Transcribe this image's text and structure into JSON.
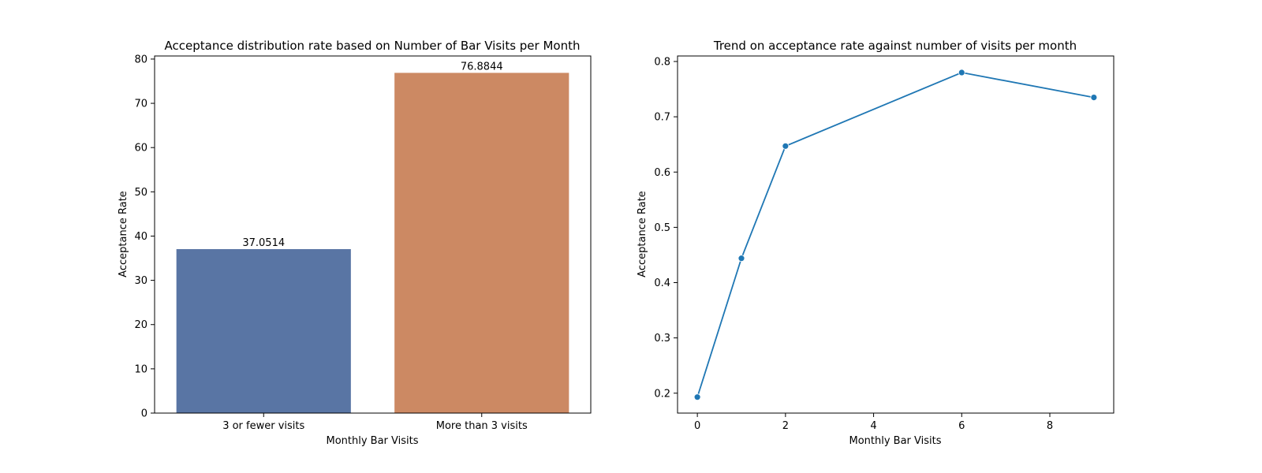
{
  "chart_data": [
    {
      "type": "bar",
      "title": "Acceptance distribution rate based on Number of Bar Visits per Month",
      "xlabel": "Monthly Bar Visits",
      "ylabel": "Acceptance Rate",
      "categories": [
        "3 or fewer visits",
        "More than 3 visits"
      ],
      "values": [
        37.0514,
        76.8844
      ],
      "value_labels": [
        "37.0514",
        "76.8844"
      ],
      "colors": [
        "#5975a4",
        "#cc8963"
      ],
      "ylim": [
        0,
        80.7
      ],
      "yticks": [
        0,
        10,
        20,
        30,
        40,
        50,
        60,
        70,
        80
      ],
      "grid": false
    },
    {
      "type": "line",
      "title": "Trend on acceptance rate against number of visits per month",
      "xlabel": "Monthly Bar Visits",
      "ylabel": "Acceptance Rate",
      "x": [
        0,
        1,
        2,
        6,
        9
      ],
      "y": [
        0.193,
        0.444,
        0.647,
        0.78,
        0.735
      ],
      "color": "#1f77b4",
      "marker": "circle",
      "xlim": [
        -0.45,
        9.45
      ],
      "ylim": [
        0.164,
        0.81
      ],
      "xticks": [
        0,
        2,
        4,
        6,
        8
      ],
      "yticks": [
        0.2,
        0.3,
        0.4,
        0.5,
        0.6,
        0.7,
        0.8
      ],
      "grid": false
    }
  ]
}
